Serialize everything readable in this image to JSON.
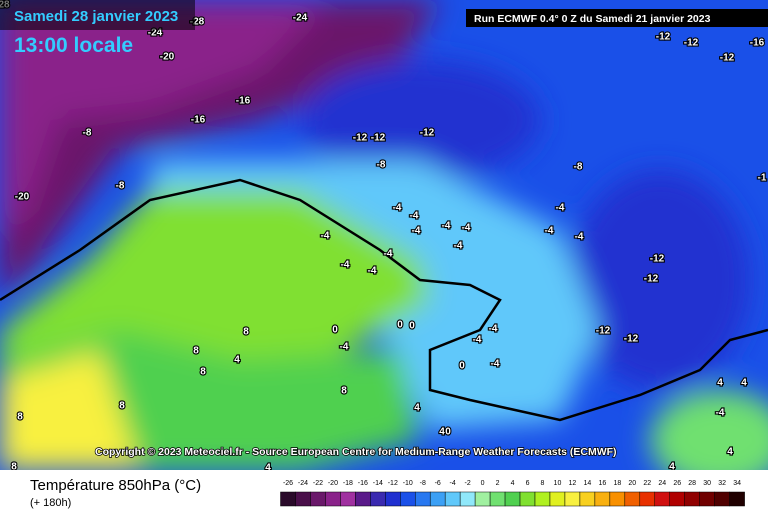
{
  "header": {
    "date": "Samedi 28 janvier 2023",
    "time": "13:00 locale",
    "run": "Run ECMWF 0.4° 0 Z du Samedi 21 janvier 2023"
  },
  "copyright": "Copyright © 2023 Meteociel.fr - Source European Centre for Medium-Range Weather Forecasts (ECMWF)",
  "footer": {
    "title": "Température 850hPa (°C)",
    "lead": "(+ 180h)"
  },
  "contour_labels": [
    "28",
    "-28",
    "-24",
    "-24",
    "-20",
    "-16",
    "-16",
    "-8",
    "-8",
    "-20",
    "-12",
    "-12",
    "-12",
    "-8",
    "-12",
    "-12",
    "-16",
    "-12",
    "-8",
    "-1",
    "-4",
    "-4",
    "-4",
    "-4",
    "-4",
    "-4",
    "-4",
    "-4",
    "-4",
    "-12",
    "-12",
    "-4",
    "-4",
    "-4",
    "-4",
    "0",
    "0",
    "0",
    "-4",
    "-4",
    "-4",
    "-12",
    "-12",
    "-4",
    "0",
    "8",
    "8",
    "4",
    "8",
    "8",
    "8",
    "8",
    "4",
    "4",
    "0",
    "4",
    "4",
    "4",
    "-4",
    "4",
    "4",
    "8"
  ],
  "scale": {
    "labels": [
      -26,
      -24,
      -22,
      -20,
      -18,
      -16,
      -14,
      -12,
      -10,
      -8,
      -6,
      -4,
      -2,
      0,
      2,
      4,
      6,
      8,
      10,
      12,
      14,
      16,
      18,
      20,
      22,
      24,
      26,
      28,
      30,
      32,
      34
    ],
    "colors": [
      "#2a0a2a",
      "#4a0f4a",
      "#6a186a",
      "#8a228a",
      "#a030a0",
      "#5a1a8a",
      "#3a2ab0",
      "#2030d0",
      "#1a50e8",
      "#2878f0",
      "#3ca0f5",
      "#60c8fa",
      "#90e8fa",
      "#a0f0a0",
      "#70e070",
      "#50d050",
      "#80e030",
      "#b0f020",
      "#e0f020",
      "#f8f040",
      "#f8d020",
      "#f8b010",
      "#f89000",
      "#f06000",
      "#e83000",
      "#d01010",
      "#b00000",
      "#900000",
      "#700000",
      "#500000",
      "#200000"
    ]
  }
}
